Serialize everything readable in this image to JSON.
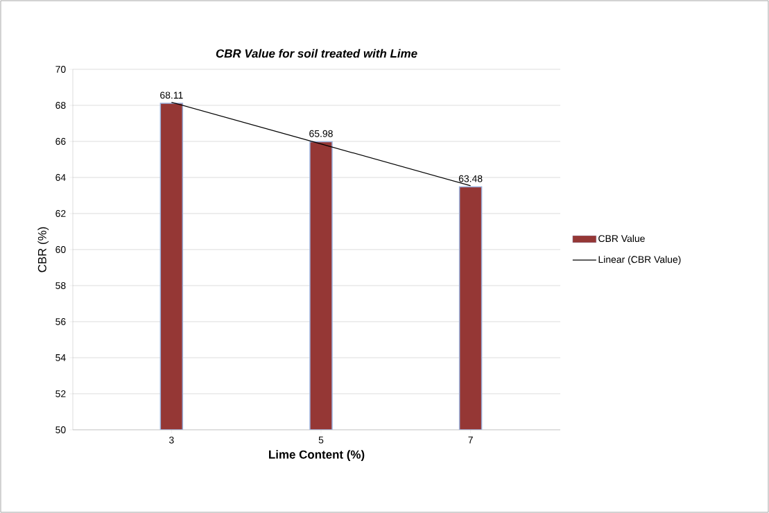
{
  "chart_data": {
    "type": "bar",
    "title": "CBR Value for soil treated with Lime",
    "xlabel": "Lime Content (%)",
    "ylabel": "CBR (%)",
    "categories": [
      "3",
      "5",
      "7"
    ],
    "series": [
      {
        "name": "CBR Value",
        "color": "#953735",
        "values": [
          68.11,
          65.98,
          63.48
        ],
        "value_labels": [
          "68.11",
          "65.98",
          "63.48"
        ]
      },
      {
        "name": "Linear (CBR Value)",
        "type": "line",
        "color": "#000000",
        "values": [
          68.17,
          65.86,
          63.54
        ]
      }
    ],
    "ylim": [
      50,
      70
    ],
    "yticks": [
      50,
      52,
      54,
      56,
      58,
      60,
      62,
      64,
      66,
      68,
      70
    ],
    "grid": "y",
    "legend": "right"
  }
}
